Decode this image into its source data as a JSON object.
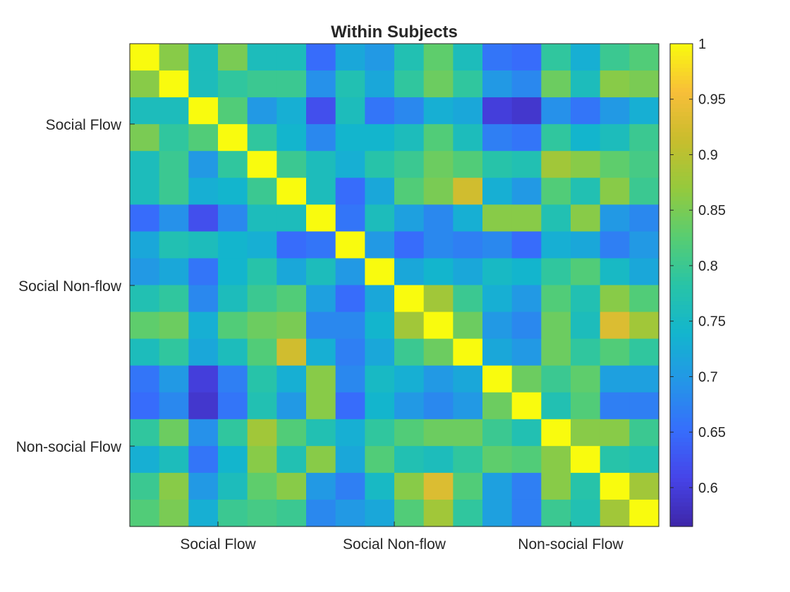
{
  "chart_data": {
    "type": "heatmap",
    "title": "Within Subjects",
    "xlabel": "",
    "ylabel": "",
    "x_tick_labels": [
      "Social Flow",
      "Social Non-flow",
      "Non-social Flow"
    ],
    "y_tick_labels": [
      "Social Flow",
      "Social Non-flow",
      "Non-social Flow"
    ],
    "colorbar": {
      "colormap": "parula",
      "clim": [
        0.565,
        1
      ],
      "ticks": [
        "0.6",
        "0.65",
        "0.7",
        "0.75",
        "0.8",
        "0.85",
        "0.9",
        "0.95",
        "1"
      ]
    },
    "grid": false,
    "matrix": [
      [
        1.0,
        0.86,
        0.76,
        0.85,
        0.76,
        0.76,
        0.65,
        0.72,
        0.7,
        0.77,
        0.83,
        0.76,
        0.66,
        0.65,
        0.79,
        0.73,
        0.8,
        0.82
      ],
      [
        0.86,
        1.0,
        0.76,
        0.79,
        0.8,
        0.8,
        0.69,
        0.77,
        0.72,
        0.79,
        0.84,
        0.79,
        0.7,
        0.68,
        0.84,
        0.76,
        0.86,
        0.85
      ],
      [
        0.76,
        0.76,
        1.0,
        0.82,
        0.7,
        0.73,
        0.62,
        0.76,
        0.66,
        0.68,
        0.73,
        0.72,
        0.6,
        0.59,
        0.69,
        0.66,
        0.7,
        0.73
      ],
      [
        0.85,
        0.79,
        0.82,
        1.0,
        0.79,
        0.74,
        0.68,
        0.74,
        0.74,
        0.76,
        0.82,
        0.76,
        0.67,
        0.66,
        0.79,
        0.74,
        0.76,
        0.8
      ],
      [
        0.76,
        0.8,
        0.7,
        0.79,
        1.0,
        0.8,
        0.76,
        0.73,
        0.78,
        0.8,
        0.84,
        0.82,
        0.78,
        0.77,
        0.88,
        0.86,
        0.83,
        0.81
      ],
      [
        0.76,
        0.8,
        0.73,
        0.74,
        0.8,
        1.0,
        0.76,
        0.65,
        0.72,
        0.82,
        0.85,
        0.92,
        0.73,
        0.7,
        0.82,
        0.77,
        0.86,
        0.8
      ],
      [
        0.65,
        0.69,
        0.62,
        0.68,
        0.76,
        0.76,
        1.0,
        0.66,
        0.76,
        0.71,
        0.68,
        0.73,
        0.86,
        0.86,
        0.77,
        0.86,
        0.7,
        0.68
      ],
      [
        0.72,
        0.77,
        0.76,
        0.74,
        0.73,
        0.65,
        0.66,
        1.0,
        0.7,
        0.65,
        0.68,
        0.67,
        0.68,
        0.65,
        0.73,
        0.72,
        0.67,
        0.7
      ],
      [
        0.7,
        0.72,
        0.66,
        0.74,
        0.78,
        0.72,
        0.76,
        0.7,
        1.0,
        0.72,
        0.74,
        0.72,
        0.75,
        0.74,
        0.79,
        0.82,
        0.75,
        0.72
      ],
      [
        0.77,
        0.79,
        0.68,
        0.76,
        0.8,
        0.82,
        0.71,
        0.65,
        0.72,
        1.0,
        0.88,
        0.8,
        0.73,
        0.7,
        0.82,
        0.77,
        0.86,
        0.82
      ],
      [
        0.83,
        0.84,
        0.73,
        0.82,
        0.84,
        0.85,
        0.68,
        0.68,
        0.74,
        0.88,
        1.0,
        0.84,
        0.7,
        0.68,
        0.84,
        0.76,
        0.93,
        0.88
      ],
      [
        0.76,
        0.79,
        0.72,
        0.76,
        0.82,
        0.92,
        0.73,
        0.67,
        0.72,
        0.8,
        0.84,
        1.0,
        0.72,
        0.7,
        0.84,
        0.79,
        0.82,
        0.79
      ],
      [
        0.66,
        0.7,
        0.6,
        0.67,
        0.78,
        0.73,
        0.86,
        0.68,
        0.75,
        0.73,
        0.7,
        0.72,
        1.0,
        0.84,
        0.8,
        0.83,
        0.71,
        0.71
      ],
      [
        0.65,
        0.68,
        0.59,
        0.66,
        0.77,
        0.7,
        0.86,
        0.65,
        0.74,
        0.7,
        0.68,
        0.7,
        0.84,
        1.0,
        0.77,
        0.82,
        0.67,
        0.67
      ],
      [
        0.79,
        0.84,
        0.69,
        0.79,
        0.88,
        0.82,
        0.77,
        0.73,
        0.79,
        0.82,
        0.84,
        0.84,
        0.8,
        0.77,
        1.0,
        0.86,
        0.86,
        0.8
      ],
      [
        0.73,
        0.76,
        0.66,
        0.74,
        0.86,
        0.77,
        0.86,
        0.72,
        0.82,
        0.77,
        0.76,
        0.79,
        0.83,
        0.82,
        0.86,
        1.0,
        0.78,
        0.77
      ],
      [
        0.8,
        0.86,
        0.7,
        0.76,
        0.83,
        0.86,
        0.7,
        0.67,
        0.75,
        0.86,
        0.93,
        0.82,
        0.71,
        0.67,
        0.86,
        0.78,
        1.0,
        0.88
      ],
      [
        0.82,
        0.85,
        0.73,
        0.8,
        0.81,
        0.8,
        0.68,
        0.7,
        0.72,
        0.82,
        0.88,
        0.79,
        0.71,
        0.67,
        0.8,
        0.77,
        0.88,
        1.0
      ]
    ]
  }
}
